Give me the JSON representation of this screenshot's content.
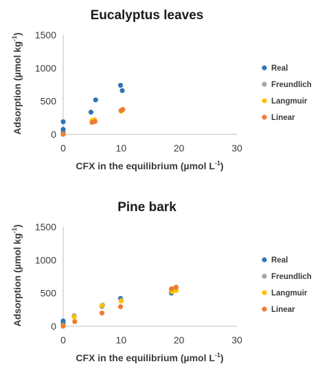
{
  "chart_data": [
    {
      "type": "scatter",
      "title": "Eucalyptus leaves",
      "xlabel": "CFX in the equilibrium (µmol L",
      "xlabel_sup": "-1",
      "xlabel_end": ")",
      "ylabel": "Adsorption (µmol kg",
      "ylabel_sup": "-1",
      "ylabel_end": ")",
      "xlim": [
        0,
        30
      ],
      "ylim": [
        0,
        1500
      ],
      "xticks": [
        0,
        10,
        20,
        30
      ],
      "yticks": [
        0,
        500,
        1000,
        1500
      ],
      "grid": false,
      "legend_position": "right",
      "series": [
        {
          "name": "Real",
          "color": "#2e75b6",
          "points": [
            [
              0,
              190
            ],
            [
              0,
              75
            ],
            [
              0,
              30
            ],
            [
              0,
              5
            ],
            [
              4.8,
              335
            ],
            [
              5.6,
              520
            ],
            [
              9.9,
              740
            ],
            [
              10.2,
              660
            ]
          ]
        },
        {
          "name": "Freundlich",
          "color": "#a5a5a5",
          "points": [
            [
              0,
              5
            ],
            [
              5,
              185
            ],
            [
              5.3,
              200
            ],
            [
              10,
              360
            ],
            [
              10.2,
              370
            ]
          ]
        },
        {
          "name": "Langmuir",
          "color": "#ffc000",
          "points": [
            [
              0,
              5
            ],
            [
              5,
              210
            ],
            [
              5.4,
              220
            ],
            [
              10,
              350
            ],
            [
              10.2,
              365
            ]
          ]
        },
        {
          "name": "Linear",
          "color": "#ed7d31",
          "points": [
            [
              0,
              0
            ],
            [
              5,
              180
            ],
            [
              5.5,
              195
            ],
            [
              10,
              360
            ],
            [
              10.3,
              375
            ]
          ]
        }
      ]
    },
    {
      "type": "scatter",
      "title": "Pine bark",
      "xlabel": "CFX in the equilibrium (µmol L",
      "xlabel_sup": "-1",
      "xlabel_end": ")",
      "ylabel": "Adsorption (µmol kg",
      "ylabel_sup": "-1",
      "ylabel_end": ")",
      "xlim": [
        0,
        30
      ],
      "ylim": [
        0,
        1500
      ],
      "xticks": [
        0,
        10,
        20,
        30
      ],
      "yticks": [
        0,
        500,
        1000,
        1500
      ],
      "grid": false,
      "legend_position": "right",
      "series": [
        {
          "name": "Real",
          "color": "#2e75b6",
          "points": [
            [
              0,
              80
            ],
            [
              0,
              40
            ],
            [
              1.9,
              150
            ],
            [
              6.7,
              300
            ],
            [
              9.9,
              420
            ],
            [
              18.7,
              500
            ],
            [
              19.4,
              580
            ]
          ]
        },
        {
          "name": "Freundlich",
          "color": "#a5a5a5",
          "points": [
            [
              0,
              10
            ],
            [
              1.9,
              160
            ],
            [
              6.8,
              320
            ],
            [
              10,
              390
            ],
            [
              18.7,
              540
            ],
            [
              19.5,
              550
            ]
          ]
        },
        {
          "name": "Langmuir",
          "color": "#ffc000",
          "points": [
            [
              0,
              10
            ],
            [
              1.9,
              140
            ],
            [
              6.7,
              310
            ],
            [
              10,
              380
            ],
            [
              18.8,
              520
            ],
            [
              19.5,
              540
            ]
          ]
        },
        {
          "name": "Linear",
          "color": "#ed7d31",
          "points": [
            [
              0,
              0
            ],
            [
              2.0,
              70
            ],
            [
              6.7,
              200
            ],
            [
              9.9,
              295
            ],
            [
              18.7,
              565
            ],
            [
              19.5,
              590
            ]
          ]
        }
      ]
    }
  ]
}
